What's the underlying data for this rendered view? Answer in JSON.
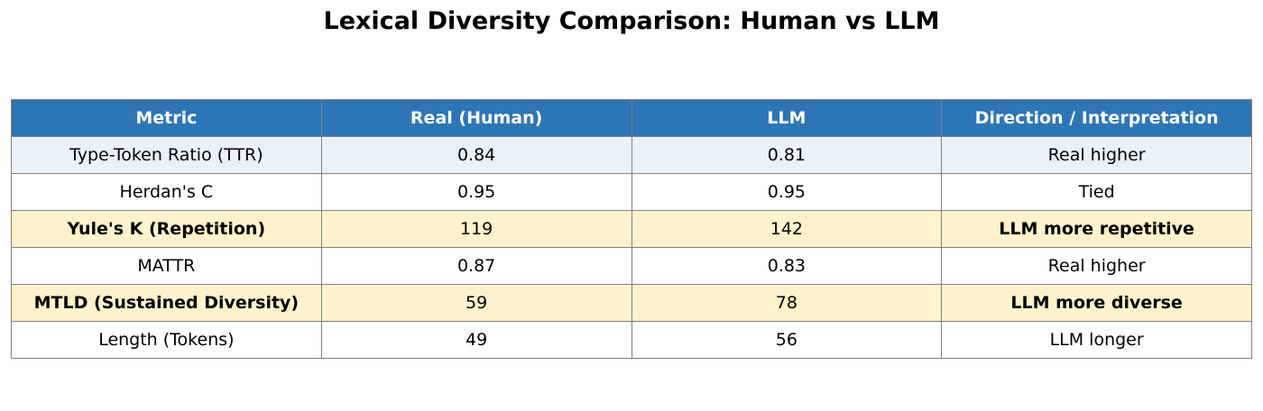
{
  "chart_data": {
    "type": "table",
    "title": "Lexical Diversity Comparison: Human vs LLM",
    "columns": [
      "Metric",
      "Real (Human)",
      "LLM",
      "Direction / Interpretation"
    ],
    "rows": [
      {
        "metric": "Type-Token Ratio (TTR)",
        "real": "0.84",
        "llm": "0.81",
        "interpretation": "Real higher",
        "emphasis": false,
        "shade": "blue"
      },
      {
        "metric": "Herdan's C",
        "real": "0.95",
        "llm": "0.95",
        "interpretation": "Tied",
        "emphasis": false,
        "shade": "white"
      },
      {
        "metric": "Yule's K (Repetition)",
        "real": "119",
        "llm": "142",
        "interpretation": "LLM more repetitive",
        "emphasis": true,
        "shade": "yellow"
      },
      {
        "metric": "MATTR",
        "real": "0.87",
        "llm": "0.83",
        "interpretation": "Real higher",
        "emphasis": false,
        "shade": "white"
      },
      {
        "metric": "MTLD (Sustained Diversity)",
        "real": "59",
        "llm": "78",
        "interpretation": "LLM more diverse",
        "emphasis": true,
        "shade": "yellow"
      },
      {
        "metric": "Length (Tokens)",
        "real": "49",
        "llm": "56",
        "interpretation": "LLM longer",
        "emphasis": false,
        "shade": "white"
      }
    ],
    "colors": {
      "header_bg": "#2e75b6",
      "header_text": "#ffffff",
      "row_blue": "#e9f1fa",
      "row_yellow": "#fff2cc",
      "row_white": "#ffffff",
      "border": "#808080"
    }
  }
}
